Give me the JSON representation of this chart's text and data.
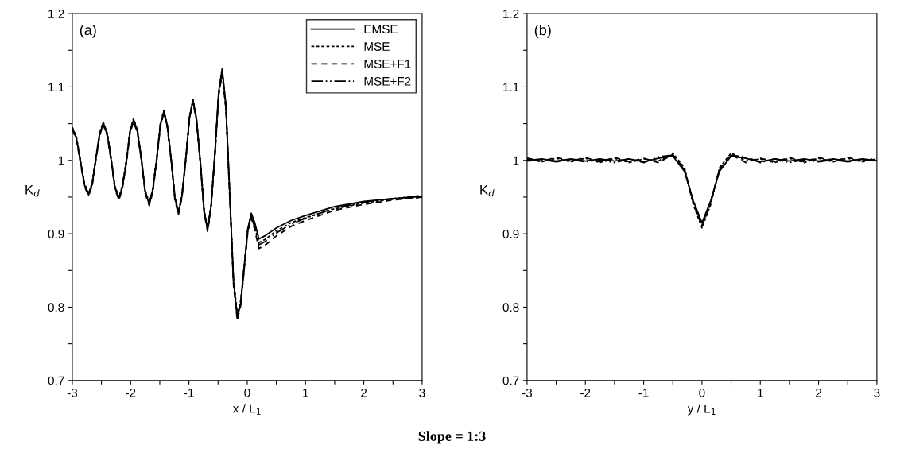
{
  "chart_data": [
    {
      "type": "line",
      "xlabel": "x / L$_{1}$",
      "ylabel": "K$_{d}$",
      "annotations": [
        "(a)",
        "Slope = 1:3"
      ],
      "legend": "top right",
      "grid": false,
      "xlim": [
        -3,
        3
      ],
      "ylim": [
        0.7,
        1.2
      ],
      "xticks": [
        -3,
        {
          "value": -2.5,
          "label": null
        },
        -2,
        {
          "value": -1.5,
          "label": null
        },
        -1,
        {
          "value": -0.5,
          "label": null
        },
        0,
        {
          "value": 0.5,
          "label": null
        },
        1,
        {
          "value": 1.5,
          "label": null
        },
        2,
        {
          "value": 2.5,
          "label": null
        },
        3
      ],
      "yticks": [
        0.7,
        {
          "value": 0.75,
          "label": null
        },
        0.8,
        {
          "value": 0.85,
          "label": null
        },
        0.9,
        {
          "value": 0.95,
          "label": null
        },
        {
          "value": 1,
          "label": "1"
        },
        {
          "value": 1.05,
          "label": null
        },
        1.1,
        {
          "value": 1.15,
          "label": null
        },
        1.2
      ],
      "x": [
        -3,
        -2.93,
        -2.86,
        -2.79,
        -2.72,
        -2.66,
        -2.6,
        -2.53,
        -2.47,
        -2.4,
        -2.33,
        -2.27,
        -2.2,
        -2.14,
        -2.07,
        -2.01,
        -1.95,
        -1.88,
        -1.81,
        -1.75,
        -1.68,
        -1.62,
        -1.55,
        -1.49,
        -1.43,
        -1.37,
        -1.3,
        -1.24,
        -1.18,
        -1.12,
        -1.05,
        -0.99,
        -0.93,
        -0.87,
        -0.8,
        -0.74,
        -0.68,
        -0.62,
        -0.55,
        -0.49,
        -0.43,
        -0.365,
        -0.3,
        -0.235,
        -0.17,
        -0.11,
        -0.05,
        0.01,
        0.07,
        0.13,
        0.2,
        0.3,
        0.5,
        0.75,
        1,
        1.5,
        2,
        2.5,
        3
      ],
      "series": [
        {
          "name": "EMSE",
          "color": "#000000",
          "line_style": "solid",
          "values": [
            1.043,
            1.03,
            0.998,
            0.966,
            0.953,
            0.967,
            1.0,
            1.036,
            1.05,
            1.035,
            0.999,
            0.963,
            0.948,
            0.964,
            1.0,
            1.039,
            1.055,
            1.038,
            0.998,
            0.957,
            0.94,
            0.959,
            1.003,
            1.048,
            1.067,
            1.047,
            0.998,
            0.948,
            0.928,
            0.951,
            1.005,
            1.059,
            1.082,
            1.056,
            0.994,
            0.931,
            0.905,
            0.937,
            1.015,
            1.093,
            1.125,
            1.075,
            0.955,
            0.835,
            0.785,
            0.806,
            0.857,
            0.907,
            0.928,
            0.915,
            0.893,
            0.897,
            0.908,
            0.918,
            0.925,
            0.937,
            0.944,
            0.948,
            0.951
          ]
        },
        {
          "name": "MSE",
          "color": "#000000",
          "line_style": "dotted",
          "values": [
            1.045,
            1.032,
            1.0,
            0.968,
            0.955,
            0.969,
            1.002,
            1.038,
            1.052,
            1.037,
            1.001,
            0.965,
            0.95,
            0.966,
            1.002,
            1.041,
            1.057,
            1.04,
            1.0,
            0.959,
            0.942,
            0.961,
            1.005,
            1.05,
            1.068,
            1.048,
            0.999,
            0.95,
            0.93,
            0.953,
            1.006,
            1.06,
            1.083,
            1.057,
            0.995,
            0.933,
            0.908,
            0.939,
            1.014,
            1.09,
            1.12,
            1.071,
            0.955,
            0.838,
            0.79,
            0.81,
            0.857,
            0.905,
            0.925,
            0.91,
            0.888,
            0.892,
            0.904,
            0.915,
            0.922,
            0.934,
            0.942,
            0.947,
            0.95
          ]
        },
        {
          "name": "MSE+F1",
          "color": "#000000",
          "line_style": "dashed",
          "values": [
            1.042,
            1.028,
            0.996,
            0.964,
            0.952,
            0.965,
            0.998,
            1.034,
            1.049,
            1.033,
            0.997,
            0.961,
            0.946,
            0.962,
            0.998,
            1.037,
            1.053,
            1.036,
            0.996,
            0.955,
            0.938,
            0.957,
            1.001,
            1.046,
            1.065,
            1.045,
            0.996,
            0.946,
            0.926,
            0.949,
            1.003,
            1.057,
            1.08,
            1.054,
            0.992,
            0.929,
            0.903,
            0.935,
            1.011,
            1.088,
            1.118,
            1.07,
            0.95,
            0.83,
            0.782,
            0.803,
            0.853,
            0.902,
            0.922,
            0.905,
            0.88,
            0.884,
            0.897,
            0.91,
            0.918,
            0.932,
            0.94,
            0.946,
            0.95
          ]
        },
        {
          "name": "MSE+F2",
          "color": "#000000",
          "line_style": "dashdot",
          "values": [
            1.044,
            1.031,
            0.999,
            0.967,
            0.954,
            0.968,
            1.001,
            1.037,
            1.051,
            1.036,
            1.0,
            0.964,
            0.949,
            0.965,
            1.001,
            1.04,
            1.056,
            1.039,
            0.999,
            0.958,
            0.941,
            0.96,
            1.004,
            1.049,
            1.066,
            1.046,
            0.997,
            0.949,
            0.929,
            0.952,
            1.004,
            1.058,
            1.081,
            1.055,
            0.993,
            0.932,
            0.906,
            0.938,
            1.013,
            1.091,
            1.122,
            1.073,
            0.953,
            0.836,
            0.788,
            0.808,
            0.855,
            0.904,
            0.924,
            0.908,
            0.885,
            0.889,
            0.901,
            0.913,
            0.921,
            0.935,
            0.943,
            0.948,
            0.952
          ]
        }
      ]
    },
    {
      "type": "line",
      "xlabel": "y / L$_{1}$",
      "ylabel": "K$_{d}$",
      "annotations": [
        "(b)"
      ],
      "grid": false,
      "xlim": [
        -3,
        3
      ],
      "ylim": [
        0.7,
        1.2
      ],
      "xticks": [
        -3,
        {
          "value": -2.5,
          "label": null
        },
        -2,
        {
          "value": -1.5,
          "label": null
        },
        -1,
        {
          "value": -0.5,
          "label": null
        },
        0,
        {
          "value": 0.5,
          "label": null
        },
        1,
        {
          "value": 1.5,
          "label": null
        },
        2,
        {
          "value": 2.5,
          "label": null
        },
        3
      ],
      "yticks": [
        0.7,
        {
          "value": 0.75,
          "label": null
        },
        0.8,
        {
          "value": 0.85,
          "label": null
        },
        0.9,
        {
          "value": 0.95,
          "label": null
        },
        {
          "value": 1,
          "label": "1"
        },
        {
          "value": 1.05,
          "label": null
        },
        1.1,
        {
          "value": 1.15,
          "label": null
        },
        1.2
      ],
      "x": [
        -3,
        -2.75,
        -2.5,
        -2.25,
        -2,
        -1.75,
        -1.5,
        -1.25,
        -1,
        -0.75,
        -0.5,
        -0.3,
        -0.15,
        0,
        0.15,
        0.3,
        0.5,
        0.75,
        1,
        1.25,
        1.5,
        1.75,
        2,
        2.25,
        2.5,
        2.75,
        3
      ],
      "series": [
        {
          "color": "#000000",
          "line_style": "solid",
          "values": [
            1.0,
            1.002,
            0.999,
            1.002,
            0.999,
            1.002,
            0.999,
            1.002,
            0.998,
            1.003,
            1.006,
            0.985,
            0.945,
            0.915,
            0.945,
            0.985,
            1.006,
            1.003,
            0.998,
            1.002,
            0.999,
            1.002,
            0.999,
            1.002,
            0.999,
            1.002,
            1.0
          ]
        },
        {
          "color": "#000000",
          "line_style": "dotted",
          "values": [
            1.002,
            0.998,
            1.003,
            0.998,
            1.003,
            0.997,
            1.003,
            0.997,
            1.002,
            0.999,
            1.01,
            0.99,
            0.94,
            0.908,
            0.94,
            0.99,
            1.01,
            0.999,
            1.002,
            0.997,
            1.003,
            0.997,
            1.003,
            0.998,
            1.003,
            0.998,
            1.002
          ]
        },
        {
          "color": "#000000",
          "line_style": "dashed",
          "values": [
            1.003,
            0.999,
            1.004,
            0.999,
            1.004,
            0.998,
            1.004,
            0.998,
            1.003,
            0.997,
            1.008,
            0.988,
            0.942,
            0.91,
            0.942,
            0.988,
            1.008,
            0.997,
            1.003,
            0.998,
            1.004,
            0.998,
            1.004,
            0.999,
            1.004,
            0.999,
            1.003
          ]
        },
        {
          "color": "#000000",
          "line_style": "dashdot",
          "values": [
            0.999,
            1.001,
            0.998,
            1.001,
            0.998,
            1.001,
            0.997,
            1.002,
            0.997,
            1.005,
            1.007,
            0.987,
            0.944,
            0.912,
            0.944,
            0.987,
            1.007,
            1.005,
            0.997,
            1.002,
            0.997,
            1.001,
            0.998,
            1.001,
            0.998,
            1.001,
            0.999
          ]
        }
      ]
    }
  ]
}
